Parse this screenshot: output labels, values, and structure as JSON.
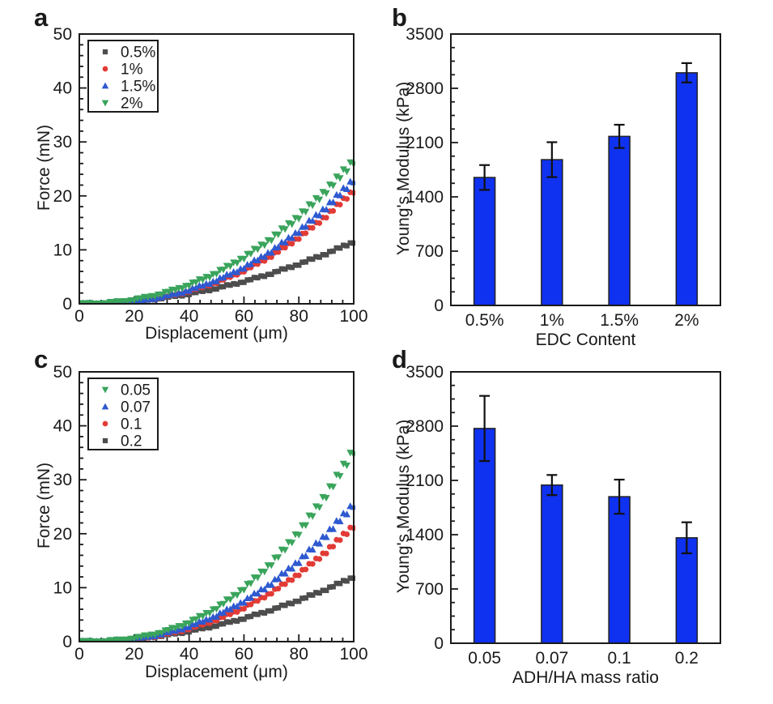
{
  "figure_background": "#ffffff",
  "chart_data": [
    {
      "id": "a",
      "letter": "a",
      "type": "scatter",
      "xlabel": "Displacement (μm)",
      "ylabel": "Force (mN)",
      "xlim": [
        0,
        100
      ],
      "ylim": [
        0,
        50
      ],
      "xticks": [
        0,
        20,
        40,
        60,
        80,
        100
      ],
      "yticks": [
        0,
        10,
        20,
        30,
        40,
        50
      ],
      "x_minor_step": 4,
      "y_minor_step": 2,
      "legend_position": "top-left",
      "grid": false,
      "x": [
        0,
        5,
        10,
        15,
        20,
        25,
        30,
        35,
        40,
        45,
        50,
        55,
        60,
        65,
        70,
        75,
        80,
        85,
        90,
        95,
        100
      ],
      "series": [
        {
          "label": "0.5%",
          "marker": "square",
          "color": "#4d4d4d",
          "jitter": 0.008,
          "values": [
            0,
            0.03,
            0.12,
            0.26,
            0.46,
            0.72,
            1.04,
            1.41,
            1.84,
            2.33,
            2.88,
            3.48,
            4.14,
            4.86,
            5.64,
            6.47,
            7.36,
            8.31,
            9.32,
            10.38,
            11.5
          ]
        },
        {
          "label": "1%",
          "marker": "circle",
          "color": "#e23b36",
          "jitter": 0.014,
          "values": [
            0,
            0.02,
            0.08,
            0.22,
            0.44,
            0.76,
            1.17,
            1.68,
            2.33,
            3.09,
            3.98,
            5.0,
            6.15,
            7.45,
            8.91,
            10.52,
            12.3,
            14.24,
            16.33,
            18.61,
            21.0
          ]
        },
        {
          "label": "1.5%",
          "marker": "triangle-up",
          "color": "#2e59d0",
          "jitter": 0.015,
          "values": [
            0,
            0.02,
            0.09,
            0.24,
            0.49,
            0.83,
            1.28,
            1.84,
            2.55,
            3.39,
            4.36,
            5.47,
            6.74,
            8.16,
            9.76,
            11.52,
            13.47,
            15.59,
            17.88,
            20.38,
            23.0
          ]
        },
        {
          "label": "2%",
          "marker": "triangle-down",
          "color": "#3aa45c",
          "jitter": 0.018,
          "values": [
            0,
            0.04,
            0.17,
            0.41,
            0.77,
            1.26,
            1.88,
            2.63,
            3.53,
            4.56,
            5.77,
            7.1,
            8.62,
            10.28,
            12.09,
            14.07,
            16.22,
            18.55,
            21.02,
            23.69,
            26.5
          ]
        }
      ],
      "draw_order": [
        0,
        1,
        2,
        3
      ]
    },
    {
      "id": "b",
      "letter": "b",
      "type": "bar",
      "xlabel": "EDC Content",
      "ylabel": "Young's Modulus (kPa)",
      "ylim": [
        0,
        3500
      ],
      "yticks": [
        0,
        700,
        1400,
        2100,
        2800,
        3500
      ],
      "y_minor_step": 175,
      "grid": false,
      "bar_color": "#0f31f0",
      "bar_edge_color": "#222222",
      "error_color": "#111111",
      "categories": [
        "0.5%",
        "1%",
        "1.5%",
        "2%"
      ],
      "values": [
        1650,
        1880,
        2180,
        3000
      ],
      "errors": [
        160,
        225,
        150,
        125
      ]
    },
    {
      "id": "c",
      "letter": "c",
      "type": "scatter",
      "xlabel": "Displacement (μm)",
      "ylabel": "Force (mN)",
      "xlim": [
        0,
        100
      ],
      "ylim": [
        0,
        50
      ],
      "xticks": [
        0,
        20,
        40,
        60,
        80,
        100
      ],
      "yticks": [
        0,
        10,
        20,
        30,
        40,
        50
      ],
      "x_minor_step": 4,
      "y_minor_step": 2,
      "legend_position": "top-left",
      "grid": false,
      "x": [
        0,
        5,
        10,
        15,
        20,
        25,
        30,
        35,
        40,
        45,
        50,
        55,
        60,
        65,
        70,
        75,
        80,
        85,
        90,
        95,
        100
      ],
      "series": [
        {
          "label": "0.05",
          "marker": "triangle-down",
          "color": "#3aa45c",
          "jitter": 0.018,
          "values": [
            0,
            0.02,
            0.11,
            0.31,
            0.64,
            1.11,
            1.75,
            2.57,
            3.59,
            4.82,
            6.28,
            7.96,
            9.9,
            12.09,
            14.56,
            17.29,
            20.32,
            23.65,
            27.28,
            31.23,
            35.5
          ]
        },
        {
          "label": "0.07",
          "marker": "triangle-up",
          "color": "#2e59d0",
          "jitter": 0.015,
          "values": [
            0,
            0.02,
            0.1,
            0.27,
            0.54,
            0.92,
            1.42,
            2.04,
            2.83,
            3.75,
            4.83,
            6.07,
            7.47,
            9.04,
            10.82,
            12.78,
            14.93,
            17.29,
            19.82,
            22.6,
            25.5
          ]
        },
        {
          "label": "0.1",
          "marker": "circle",
          "color": "#e23b36",
          "jitter": 0.014,
          "values": [
            0,
            0.02,
            0.09,
            0.23,
            0.45,
            0.77,
            1.2,
            1.72,
            2.39,
            3.16,
            4.07,
            5.11,
            6.3,
            7.63,
            9.13,
            10.77,
            12.59,
            14.58,
            16.71,
            19.05,
            21.5
          ]
        },
        {
          "label": "0.2",
          "marker": "square",
          "color": "#4d4d4d",
          "jitter": 0.008,
          "values": [
            0,
            0.03,
            0.12,
            0.27,
            0.48,
            0.75,
            1.08,
            1.47,
            1.92,
            2.43,
            3.0,
            3.63,
            4.32,
            5.07,
            5.88,
            6.75,
            7.68,
            8.67,
            9.72,
            10.83,
            12.0
          ]
        }
      ],
      "draw_order": [
        3,
        2,
        1,
        0
      ]
    },
    {
      "id": "d",
      "letter": "d",
      "type": "bar",
      "xlabel": "ADH/HA mass ratio",
      "ylabel": "Young's Modulus (kPa)",
      "ylim": [
        0,
        3500
      ],
      "yticks": [
        0,
        700,
        1400,
        2100,
        2800,
        3500
      ],
      "y_minor_step": 175,
      "grid": false,
      "bar_color": "#0f31f0",
      "bar_edge_color": "#222222",
      "error_color": "#111111",
      "categories": [
        "0.05",
        "0.07",
        "0.1",
        "0.2"
      ],
      "values": [
        2770,
        2040,
        1890,
        1360
      ],
      "errors": [
        420,
        130,
        220,
        200
      ]
    }
  ]
}
